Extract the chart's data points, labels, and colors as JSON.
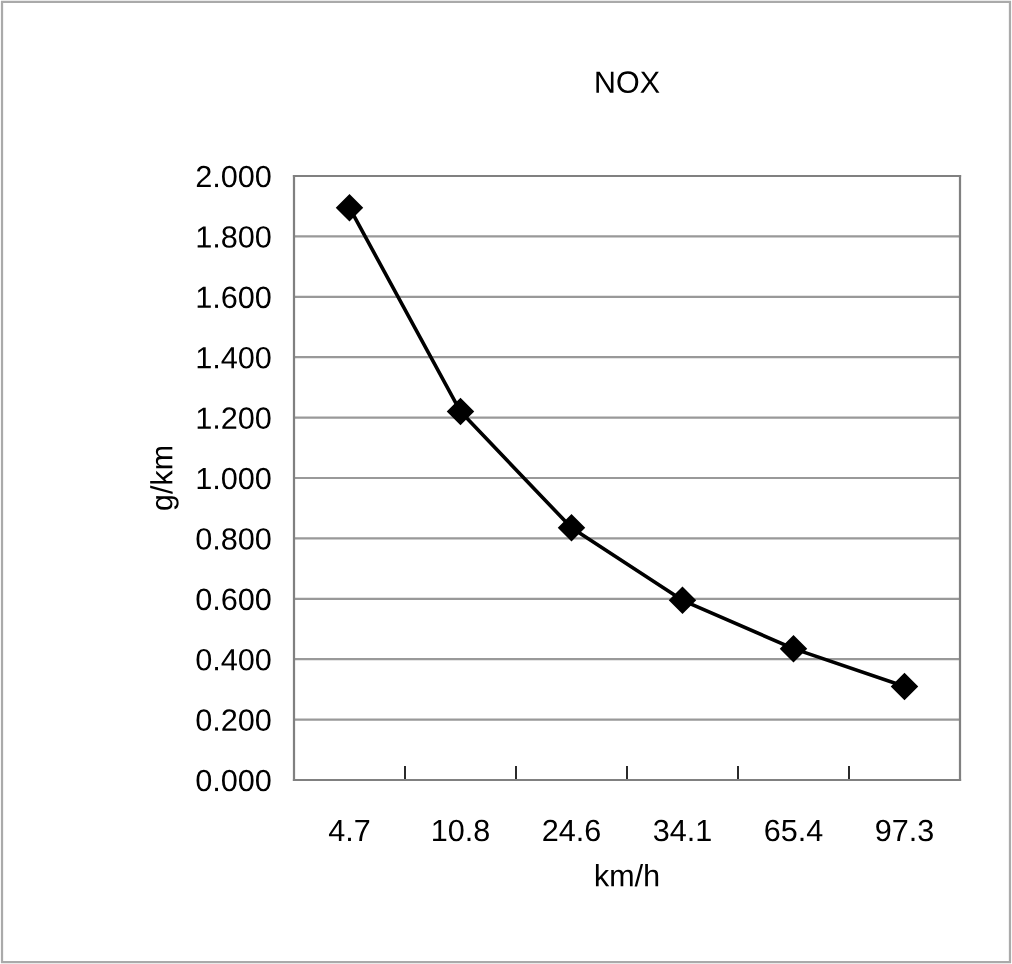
{
  "chart_data": {
    "type": "line",
    "title": "NOX",
    "xlabel": "km/h",
    "ylabel": "g/km",
    "categories": [
      "4.7",
      "10.8",
      "24.6",
      "34.1",
      "65.4",
      "97.3"
    ],
    "series": [
      {
        "color": "#000000",
        "values": [
          1.895,
          1.22,
          0.835,
          0.595,
          0.435,
          0.31
        ]
      }
    ],
    "ylim": [
      0,
      2
    ],
    "yticks": [
      {
        "value": 0,
        "label": "0.000"
      },
      {
        "value": 0.2,
        "label": "0.200"
      },
      {
        "value": 0.4,
        "label": "0.400"
      },
      {
        "value": 0.6,
        "label": "0.600"
      },
      {
        "value": 0.8,
        "label": "0.800"
      },
      {
        "value": 1,
        "label": "1.000"
      },
      {
        "value": 1.2,
        "label": "1.200"
      },
      {
        "value": 1.4,
        "label": "1.400"
      },
      {
        "value": 1.6,
        "label": "1.600"
      },
      {
        "value": 1.8,
        "label": "1.800"
      },
      {
        "value": 2,
        "label": "2.000"
      }
    ],
    "grid": "y",
    "marker": "diamond",
    "line_style": "solid"
  }
}
